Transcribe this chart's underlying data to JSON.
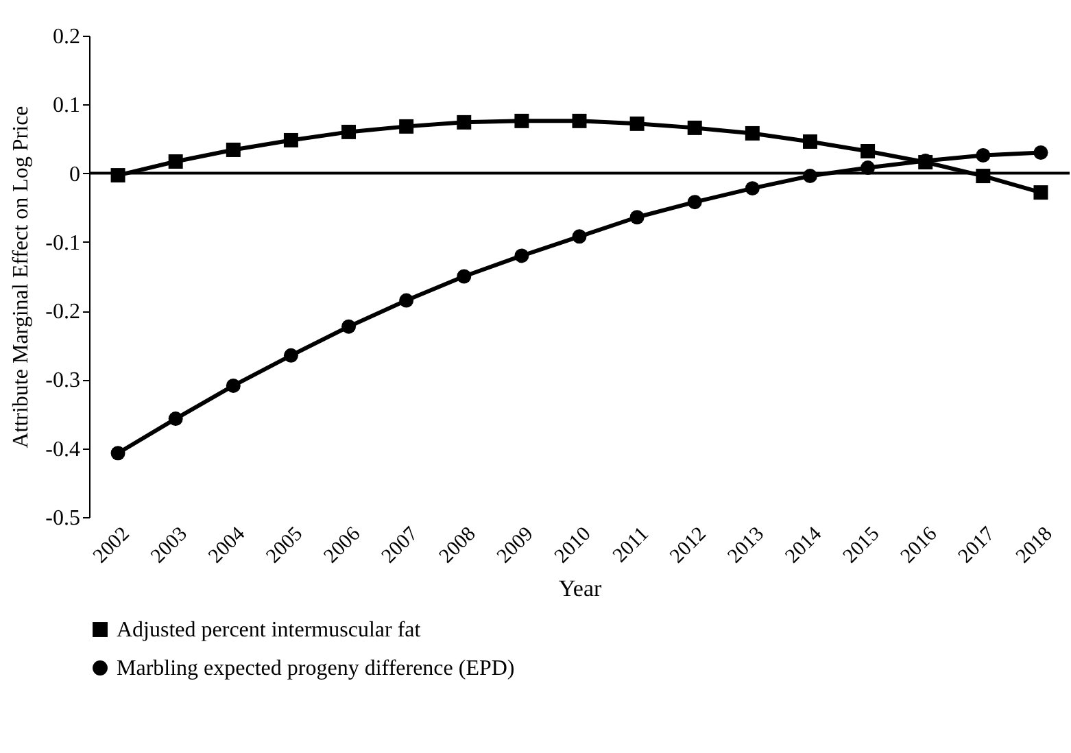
{
  "chart_data": {
    "type": "line",
    "xlabel": "Year",
    "ylabel": "Attribute Marginal Effect on Log Price",
    "categories": [
      "2002",
      "2003",
      "2004",
      "2005",
      "2006",
      "2007",
      "2008",
      "2009",
      "2010",
      "2011",
      "2012",
      "2013",
      "2014",
      "2015",
      "2016",
      "2017",
      "2018"
    ],
    "series": [
      {
        "name": "Adjusted percent intermuscular fat",
        "color": "#000000",
        "marker": "square",
        "values": [
          -0.003,
          0.017,
          0.034,
          0.048,
          0.06,
          0.068,
          0.074,
          0.076,
          0.076,
          0.072,
          0.066,
          0.058,
          0.046,
          0.032,
          0.016,
          -0.004,
          -0.028
        ]
      },
      {
        "name": "Marbling expected progeny difference (EPD)",
        "color": "#000000",
        "marker": "circle",
        "values": [
          -0.407,
          -0.357,
          -0.309,
          -0.265,
          -0.223,
          -0.185,
          -0.15,
          -0.12,
          -0.092,
          -0.064,
          -0.042,
          -0.022,
          -0.004,
          0.008,
          0.018,
          0.026,
          0.03
        ]
      }
    ],
    "ylim": [
      -0.5,
      0.2
    ],
    "yticks": [
      {
        "value": -0.5,
        "label": "-0.5"
      },
      {
        "value": -0.4,
        "label": "-0.4"
      },
      {
        "value": -0.3,
        "label": "-0.3"
      },
      {
        "value": -0.2,
        "label": "-0.2"
      },
      {
        "value": -0.1,
        "label": "-0.1"
      },
      {
        "value": 0,
        "label": "0"
      },
      {
        "value": 0.1,
        "label": "0.1"
      },
      {
        "value": 0.2,
        "label": "0.2"
      }
    ],
    "ref_lines": [
      {
        "axis": "y",
        "value": 0,
        "color": "#000000"
      }
    ],
    "grid": false,
    "legend": "bottom",
    "line_style": "solid"
  }
}
